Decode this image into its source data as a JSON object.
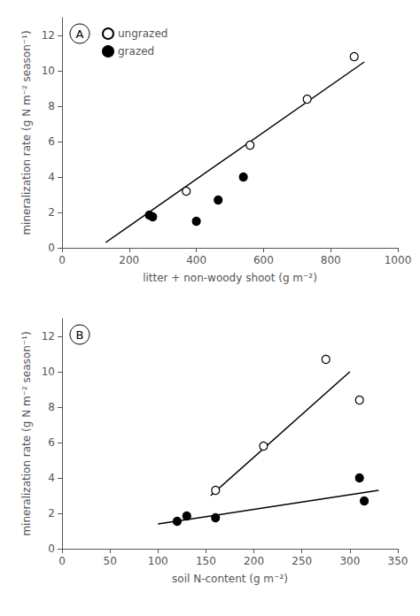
{
  "chart_data": [
    {
      "type": "scatter",
      "annotations": [
        "A"
      ],
      "xlabel": "litter + non-woody shoot (g m⁻²)",
      "ylabel": "mineralization rate (g N m⁻² season⁻¹)",
      "xlim": [
        0,
        1000
      ],
      "ylim": [
        0,
        13
      ],
      "xticks": [
        0,
        200,
        400,
        600,
        800,
        1000
      ],
      "yticks": [
        0,
        2,
        4,
        6,
        8,
        10,
        12
      ],
      "grid": false,
      "legend": "upper left",
      "series": [
        {
          "name": "ungrazed",
          "type": "scatter",
          "marker": "circle",
          "color": "white",
          "x": [
            370,
            560,
            730,
            870
          ],
          "values": [
            3.2,
            5.8,
            8.4,
            10.8
          ]
        },
        {
          "name": "grazed",
          "type": "scatter",
          "marker": "circle",
          "color": "black",
          "x": [
            260,
            270,
            400,
            465,
            540
          ],
          "values": [
            1.85,
            1.75,
            1.5,
            2.7,
            4.0
          ]
        },
        {
          "type": "line",
          "line_style": "solid",
          "color": "black",
          "x": [
            130,
            900
          ],
          "values": [
            0.3,
            10.5
          ]
        }
      ]
    },
    {
      "type": "scatter",
      "annotations": [
        "B"
      ],
      "xlabel": "soil N-content (g m⁻²)",
      "ylabel": "mineralization rate (g N m⁻² season⁻¹)",
      "xlim": [
        0,
        350
      ],
      "ylim": [
        0,
        13
      ],
      "xticks": [
        0,
        50,
        100,
        150,
        200,
        250,
        300,
        350
      ],
      "yticks": [
        0,
        2,
        4,
        6,
        8,
        10,
        12
      ],
      "grid": false,
      "series": [
        {
          "type": "scatter",
          "marker": "circle",
          "color": "white",
          "x": [
            160,
            210,
            275,
            310
          ],
          "values": [
            3.3,
            5.8,
            10.7,
            8.4
          ]
        },
        {
          "type": "scatter",
          "marker": "circle",
          "color": "black",
          "x": [
            120,
            130,
            160,
            310,
            315
          ],
          "values": [
            1.55,
            1.85,
            1.75,
            4.0,
            2.7
          ]
        },
        {
          "type": "line",
          "line_style": "solid",
          "color": "black",
          "x": [
            155,
            300
          ],
          "values": [
            3.0,
            10.0
          ]
        },
        {
          "type": "line",
          "line_style": "solid",
          "color": "black",
          "x": [
            100,
            330
          ],
          "values": [
            1.4,
            3.3
          ]
        }
      ]
    }
  ]
}
